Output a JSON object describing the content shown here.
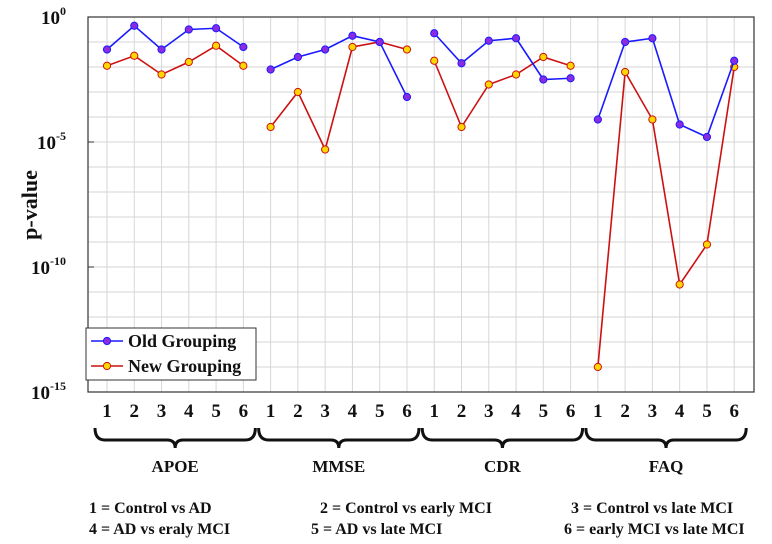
{
  "chart_data": {
    "type": "line",
    "ylabel": "p-value",
    "yscale": "log",
    "ylim_exp": [
      -15,
      0
    ],
    "y_ticks": [
      {
        "base": "10",
        "exp": "0",
        "value_exp": 0
      },
      {
        "base": "10",
        "exp": "-5",
        "value_exp": -5
      },
      {
        "base": "10",
        "exp": "-10",
        "value_exp": -10
      },
      {
        "base": "10",
        "exp": "-15",
        "value_exp": -15
      }
    ],
    "groups": [
      {
        "name": "APOE",
        "categories": [
          "1",
          "2",
          "3",
          "4",
          "5",
          "6"
        ]
      },
      {
        "name": "MMSE",
        "categories": [
          "1",
          "2",
          "3",
          "4",
          "5",
          "6"
        ]
      },
      {
        "name": "CDR",
        "categories": [
          "1",
          "2",
          "3",
          "4",
          "5",
          "6"
        ]
      },
      {
        "name": "FAQ",
        "categories": [
          "1",
          "2",
          "3",
          "4",
          "5",
          "6"
        ]
      }
    ],
    "series": [
      {
        "name": "Old Grouping",
        "color": "#1a1aff",
        "marker_fill": "#8a2be2",
        "log10_values": [
          [
            -1.3,
            -0.35,
            -1.3,
            -0.5,
            -0.45,
            -1.2
          ],
          [
            -2.1,
            -1.6,
            -1.3,
            -0.75,
            -1.0,
            -3.2
          ],
          [
            -0.65,
            -1.85,
            -0.95,
            -0.85,
            -2.5,
            -2.45
          ],
          [
            -4.1,
            -1.0,
            -0.85,
            -4.3,
            -4.8,
            -1.75
          ]
        ]
      },
      {
        "name": "New Grouping",
        "color": "#cc1111",
        "marker_fill": "#ffd700",
        "log10_values": [
          [
            -1.95,
            -1.55,
            -2.3,
            -1.8,
            -1.15,
            -1.95
          ],
          [
            -4.4,
            -3.0,
            -5.3,
            -1.2,
            -1.0,
            -1.3
          ],
          [
            -1.75,
            -4.4,
            -2.7,
            -2.3,
            -1.6,
            -1.95
          ],
          [
            -14.0,
            -2.2,
            -4.1,
            -10.7,
            -9.1,
            -2.0
          ]
        ]
      }
    ],
    "legend": {
      "position": "bottom-left",
      "entries": [
        "Old Grouping",
        "New Grouping"
      ]
    },
    "grid": true
  },
  "footnotes": [
    "1 = Control vs AD",
    "2 = Control vs early MCI",
    "3 = Control vs late MCI",
    "4 = AD vs eraly MCI",
    "5 = AD vs late MCI",
    "6 = early MCI vs late MCI"
  ]
}
